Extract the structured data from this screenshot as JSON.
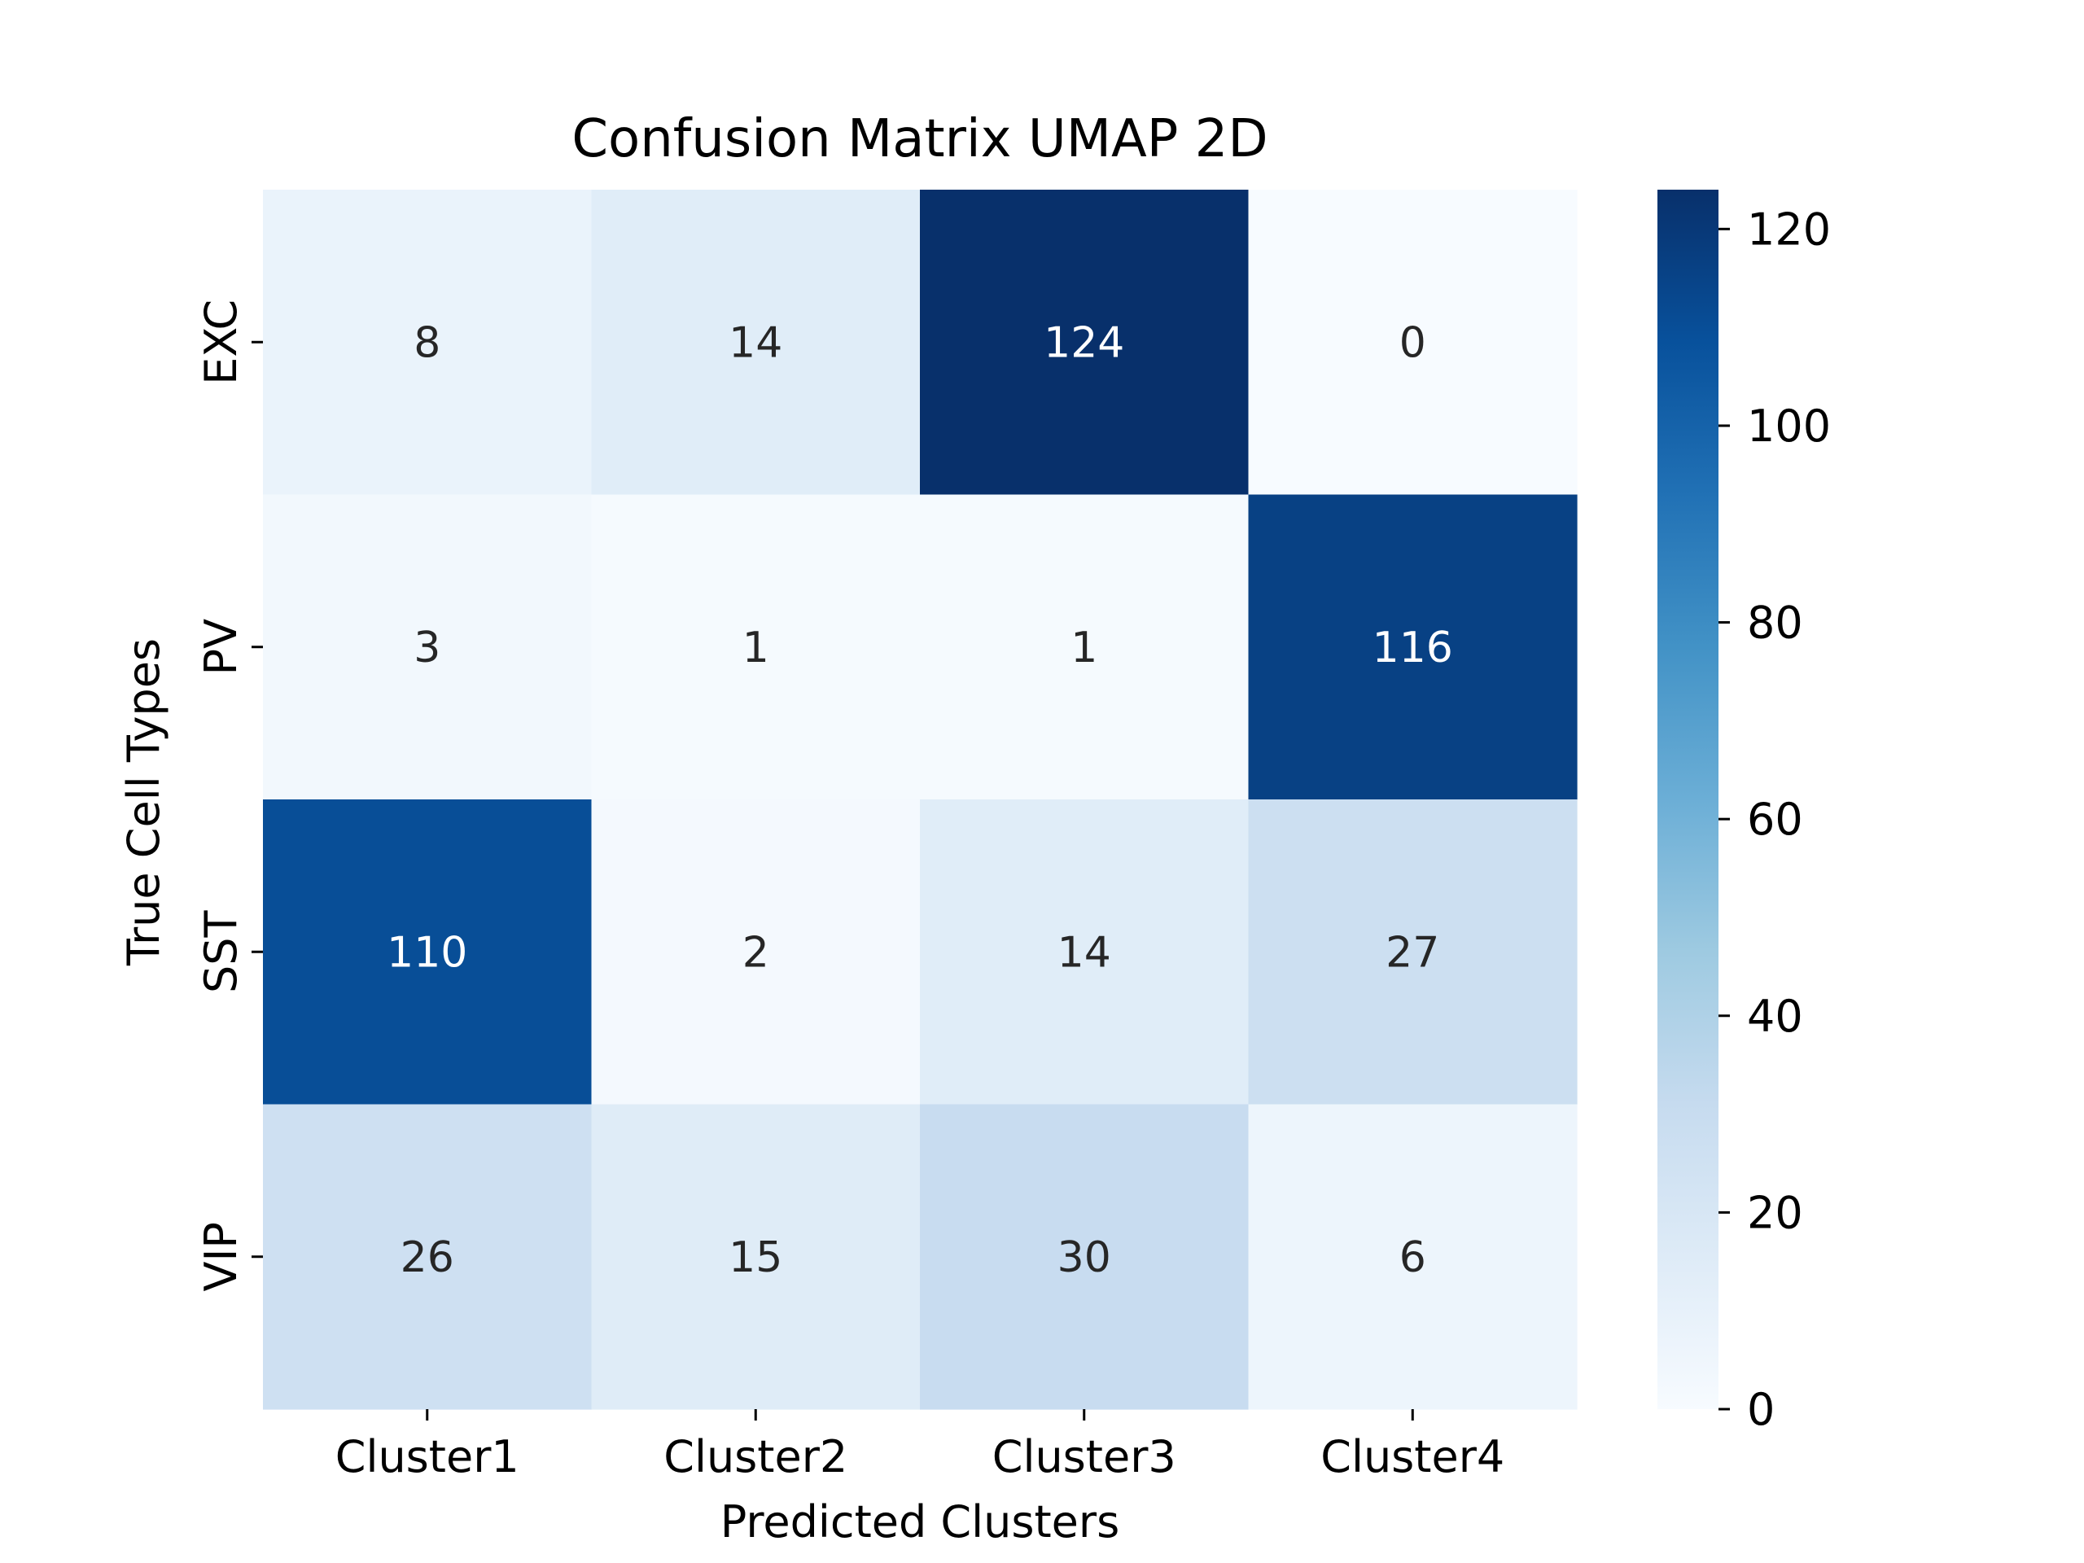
{
  "chart_data": {
    "type": "heatmap",
    "title": "Confusion Matrix UMAP 2D",
    "xlabel": "Predicted Clusters",
    "ylabel": "True Cell Types",
    "x_categories": [
      "Cluster1",
      "Cluster2",
      "Cluster3",
      "Cluster4"
    ],
    "y_categories": [
      "EXC",
      "PV",
      "SST",
      "VIP"
    ],
    "values": [
      [
        8,
        14,
        124,
        0
      ],
      [
        3,
        1,
        1,
        116
      ],
      [
        110,
        2,
        14,
        27
      ],
      [
        26,
        15,
        30,
        6
      ]
    ],
    "colormap": "Blues",
    "colormap_stops": [
      "#f7fbff",
      "#deebf7",
      "#c6dbef",
      "#9ecae1",
      "#6baed6",
      "#4292c6",
      "#2171b5",
      "#08519c",
      "#08306b"
    ],
    "value_range": [
      0,
      124
    ],
    "colorbar_ticks": [
      0,
      20,
      40,
      60,
      80,
      100,
      120
    ],
    "annotations": true,
    "grid": false
  }
}
